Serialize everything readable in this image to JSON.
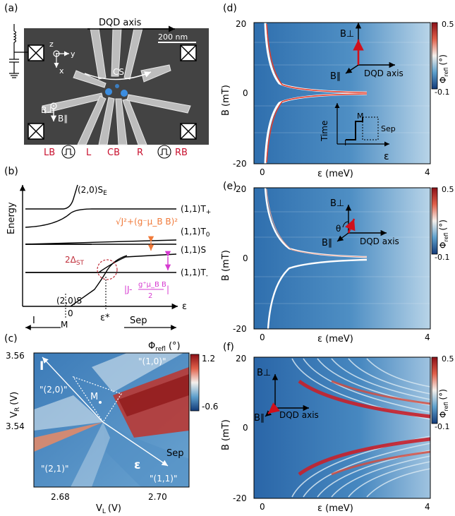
{
  "panel_labels": {
    "a": "(a)",
    "b": "(b)",
    "c": "(c)",
    "d": "(d)",
    "e": "(e)",
    "f": "(f)"
  },
  "panel_a": {
    "dqd_axis": "DQD axis",
    "scale_bar": "200 nm",
    "axis_z": "z",
    "axis_y": "y",
    "axis_x": "x",
    "cs": "CS",
    "b_perp": "B⊥",
    "b_par": "B∥",
    "gates": [
      "LB",
      "L",
      "CB",
      "R",
      "RB"
    ],
    "accent_color": "#c8102e"
  },
  "panel_b": {
    "ylabel": "Energy",
    "xlabel": "ε",
    "levels": {
      "s_e": "(2,0)S",
      "s_e_sub": "E",
      "t_plus": "(1,1)T",
      "t_plus_sub": "+",
      "t_zero": "(1,1)T",
      "t_zero_sub": "0",
      "s_11": "(1,1)S",
      "t_minus": "(1,1)T",
      "t_minus_sub": "-",
      "s_20": "(2,0)S"
    },
    "gap_expr_top": "√J²+(g⁻μ_B B)²",
    "gap_expr_bottom_left": "|J-",
    "gap_expr_frac_num": "g⁺μ_B B",
    "gap_expr_frac_den": "2",
    "gap_expr_bottom_right": "|",
    "delta_st": "2Δ",
    "delta_st_sub": "ST",
    "tick_zero": "0",
    "tick_eps_star": "ε*",
    "tick_m": "M",
    "arrow_i": "I",
    "arrow_sep": "Sep",
    "orange": "#f07a3a",
    "magenta": "#d63ad0",
    "crimson": "#c0303c"
  },
  "panel_c": {
    "colorbar_label": "Φ",
    "colorbar_label_sub": "refl",
    "colorbar_unit": "(°)",
    "colorbar_max": "1.2",
    "colorbar_min": "-0.6",
    "ylabel": "V",
    "ylabel_sub": "R",
    "ylabel_unit": "(V)",
    "xlabel": "V",
    "xlabel_sub": "L",
    "xlabel_unit": "(V)",
    "yticks": [
      "3.56",
      "3.54"
    ],
    "xticks": [
      "2.68",
      "2.70"
    ],
    "regions": [
      "\"(1,0)\"",
      "\"(2,0)\"",
      "\"(2,1)\"",
      "\"(1,1)\""
    ],
    "label_i": "I",
    "label_m": "M",
    "label_sep": "Sep",
    "label_eps": "ε"
  },
  "panel_d": {
    "ylabel": "B (mT)",
    "xlabel": "ε (meV)",
    "yticks": [
      "20",
      "0",
      "-20"
    ],
    "xticks": [
      "0",
      "4"
    ],
    "colorbar_max": "0.5",
    "colorbar_min": "-0.1",
    "colorbar_label": "Φ",
    "colorbar_label_sub": "refl",
    "colorbar_unit": "(°)",
    "b_perp": "B⊥",
    "b_par": "B∥",
    "dqd_axis": "DQD axis",
    "time": "Time",
    "pulse_m": "M",
    "pulse_i": "I",
    "pulse_sep": "Sep",
    "pulse_eps": "ε"
  },
  "panel_e": {
    "ylabel": "B (mT)",
    "xlabel": "ε (meV)",
    "yticks": [
      "20",
      "0",
      "-20"
    ],
    "xticks": [
      "0",
      "4"
    ],
    "colorbar_max": "0.5",
    "colorbar_min": "-0.1",
    "colorbar_label": "Φ",
    "colorbar_label_sub": "refl",
    "colorbar_unit": "(°)",
    "b_perp": "B⊥",
    "b_par": "B∥",
    "theta": "θ",
    "dqd_axis": "DQD axis"
  },
  "panel_f": {
    "ylabel": "B (mT)",
    "xlabel": "ε (meV)",
    "yticks": [
      "20",
      "0",
      "-20"
    ],
    "xticks": [
      "0",
      "4"
    ],
    "colorbar_max": "0.5",
    "colorbar_min": "-0.1",
    "colorbar_label": "Φ",
    "colorbar_label_sub": "refl",
    "colorbar_unit": "(°)",
    "b_perp": "B⊥",
    "b_par": "B∥",
    "dqd_axis": "DQD axis"
  }
}
